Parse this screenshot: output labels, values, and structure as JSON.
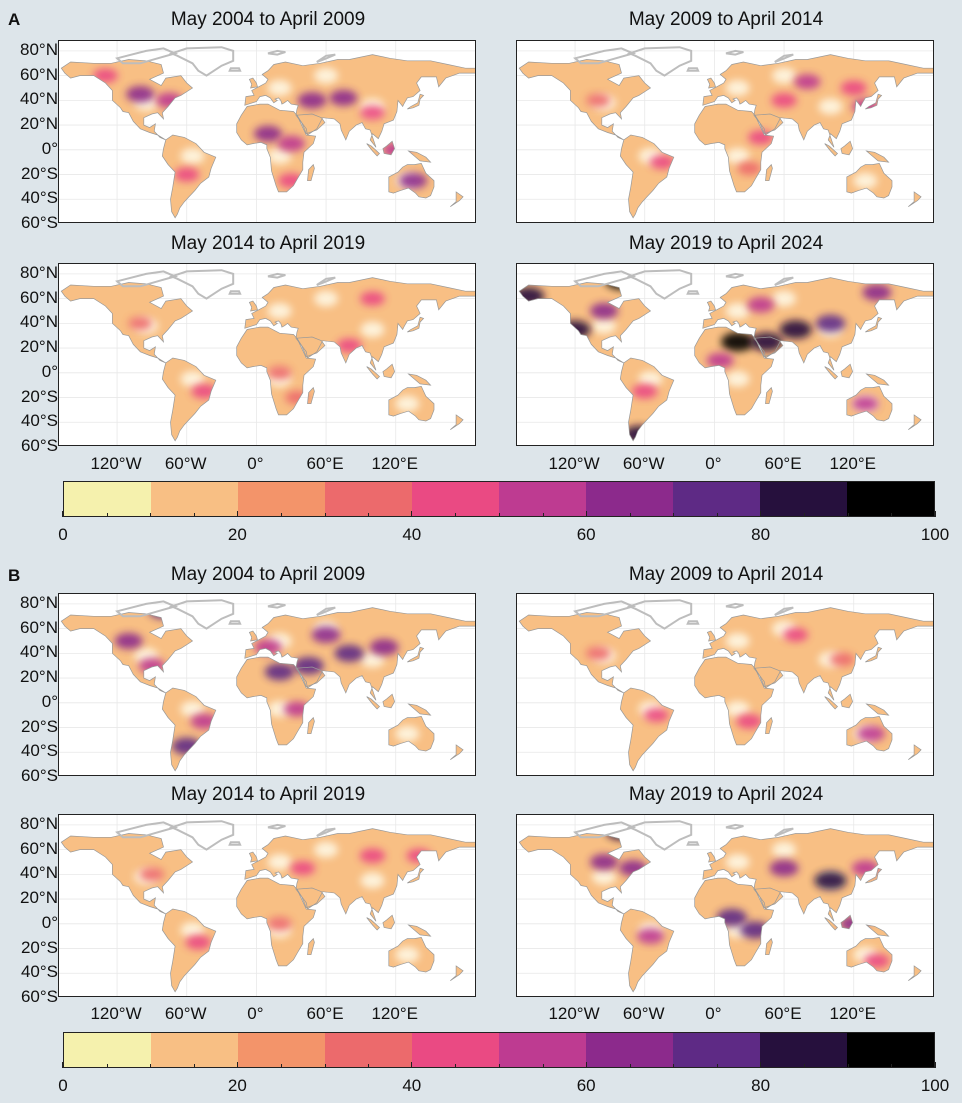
{
  "panels": [
    {
      "letter": "A",
      "maps": [
        {
          "title": "May 2004 to April 2009",
          "hotspots": [
            {
              "lon": -100,
              "lat": 45,
              "v": 62
            },
            {
              "lon": -75,
              "lat": 40,
              "v": 55
            },
            {
              "lon": 10,
              "lat": 13,
              "v": 60
            },
            {
              "lon": 30,
              "lat": 5,
              "v": 58
            },
            {
              "lon": 48,
              "lat": 40,
              "v": 65
            },
            {
              "lon": 75,
              "lat": 42,
              "v": 60
            },
            {
              "lon": 120,
              "lat": 0,
              "v": 55
            },
            {
              "lon": 135,
              "lat": -25,
              "v": 60
            },
            {
              "lon": -60,
              "lat": -20,
              "v": 42
            },
            {
              "lon": 30,
              "lat": -25,
              "v": 48
            },
            {
              "lon": 100,
              "lat": 30,
              "v": 40
            },
            {
              "lon": -130,
              "lat": 60,
              "v": 40
            }
          ]
        },
        {
          "title": "May 2009 to April 2014",
          "hotspots": [
            {
              "lon": 80,
              "lat": 55,
              "v": 50
            },
            {
              "lon": 120,
              "lat": 50,
              "v": 48
            },
            {
              "lon": 130,
              "lat": 35,
              "v": 55
            },
            {
              "lon": 40,
              "lat": 10,
              "v": 45
            },
            {
              "lon": -45,
              "lat": -10,
              "v": 40
            },
            {
              "lon": 30,
              "lat": -15,
              "v": 35
            },
            {
              "lon": 60,
              "lat": 40,
              "v": 45
            },
            {
              "lon": -100,
              "lat": 40,
              "v": 35
            }
          ]
        },
        {
          "title": "May 2014 to April 2019",
          "hotspots": [
            {
              "lon": 80,
              "lat": 22,
              "v": 42
            },
            {
              "lon": -45,
              "lat": -15,
              "v": 45
            },
            {
              "lon": 100,
              "lat": 60,
              "v": 40
            },
            {
              "lon": 20,
              "lat": 0,
              "v": 35
            },
            {
              "lon": -100,
              "lat": 40,
              "v": 32
            },
            {
              "lon": 35,
              "lat": -20,
              "v": 35
            }
          ]
        },
        {
          "title": "May 2019 to April 2024",
          "hotspots": [
            {
              "lon": 20,
              "lat": 25,
              "v": 90
            },
            {
              "lon": 45,
              "lat": 25,
              "v": 88
            },
            {
              "lon": 70,
              "lat": 35,
              "v": 85
            },
            {
              "lon": -120,
              "lat": 35,
              "v": 80
            },
            {
              "lon": -160,
              "lat": 62,
              "v": 80
            },
            {
              "lon": -80,
              "lat": 75,
              "v": 90
            },
            {
              "lon": 100,
              "lat": 40,
              "v": 70
            },
            {
              "lon": 140,
              "lat": 65,
              "v": 65
            },
            {
              "lon": -65,
              "lat": -50,
              "v": 80
            },
            {
              "lon": -60,
              "lat": -15,
              "v": 45
            },
            {
              "lon": 130,
              "lat": -25,
              "v": 50
            },
            {
              "lon": 40,
              "lat": 55,
              "v": 55
            },
            {
              "lon": -95,
              "lat": 50,
              "v": 60
            },
            {
              "lon": 5,
              "lat": 10,
              "v": 55
            }
          ]
        }
      ],
      "colorbar": {
        "ticks": [
          "0",
          "20",
          "40",
          "60",
          "80",
          "100"
        ]
      }
    },
    {
      "letter": "B",
      "maps": [
        {
          "title": "May 2004 to April 2009",
          "hotspots": [
            {
              "lon": 20,
              "lat": 25,
              "v": 70
            },
            {
              "lon": 45,
              "lat": 30,
              "v": 75
            },
            {
              "lon": 80,
              "lat": 40,
              "v": 70
            },
            {
              "lon": 60,
              "lat": 55,
              "v": 65
            },
            {
              "lon": 110,
              "lat": 45,
              "v": 65
            },
            {
              "lon": -80,
              "lat": 75,
              "v": 75
            },
            {
              "lon": -110,
              "lat": 50,
              "v": 60
            },
            {
              "lon": -60,
              "lat": -35,
              "v": 70
            },
            {
              "lon": -45,
              "lat": -15,
              "v": 55
            },
            {
              "lon": 10,
              "lat": 45,
              "v": 55
            },
            {
              "lon": -90,
              "lat": 30,
              "v": 50
            },
            {
              "lon": 35,
              "lat": -5,
              "v": 50
            }
          ]
        },
        {
          "title": "May 2009 to April 2014",
          "hotspots": [
            {
              "lon": 135,
              "lat": -25,
              "v": 58
            },
            {
              "lon": 30,
              "lat": -15,
              "v": 48
            },
            {
              "lon": -50,
              "lat": -10,
              "v": 40
            },
            {
              "lon": 70,
              "lat": 55,
              "v": 40
            },
            {
              "lon": -100,
              "lat": 40,
              "v": 38
            },
            {
              "lon": 110,
              "lat": 35,
              "v": 38
            }
          ]
        },
        {
          "title": "May 2014 to April 2019",
          "hotspots": [
            {
              "lon": -50,
              "lat": -15,
              "v": 45
            },
            {
              "lon": 100,
              "lat": 55,
              "v": 45
            },
            {
              "lon": 20,
              "lat": 0,
              "v": 38
            },
            {
              "lon": -90,
              "lat": 40,
              "v": 38
            },
            {
              "lon": 140,
              "lat": 55,
              "v": 42
            },
            {
              "lon": 40,
              "lat": 45,
              "v": 40
            }
          ]
        },
        {
          "title": "May 2019 to April 2024",
          "hotspots": [
            {
              "lon": 15,
              "lat": 5,
              "v": 75
            },
            {
              "lon": 35,
              "lat": -5,
              "v": 72
            },
            {
              "lon": 100,
              "lat": 35,
              "v": 85
            },
            {
              "lon": 60,
              "lat": 45,
              "v": 65
            },
            {
              "lon": -80,
              "lat": 75,
              "v": 80
            },
            {
              "lon": -95,
              "lat": 50,
              "v": 60
            },
            {
              "lon": -55,
              "lat": -10,
              "v": 55
            },
            {
              "lon": 130,
              "lat": 45,
              "v": 55
            },
            {
              "lon": -70,
              "lat": 45,
              "v": 60
            },
            {
              "lon": 120,
              "lat": 0,
              "v": 60
            },
            {
              "lon": 140,
              "lat": -30,
              "v": 45
            }
          ]
        }
      ],
      "colorbar": {
        "ticks": [
          "0",
          "20",
          "40",
          "60",
          "80",
          "100"
        ]
      }
    }
  ],
  "lat_ticks": [
    "80°N",
    "60°N",
    "40°N",
    "20°N",
    "0°",
    "20°S",
    "40°S",
    "60°S"
  ],
  "lat_values": [
    80,
    60,
    40,
    20,
    0,
    -20,
    -40,
    -60
  ],
  "lon_ticks": [
    "120°W",
    "60°W",
    "0°",
    "60°E",
    "120°E"
  ],
  "lon_values": [
    -120,
    -60,
    0,
    60,
    120
  ],
  "chart_data": {
    "type": "heatmap",
    "description_units": "percent",
    "colorbar_range": [
      0,
      100
    ],
    "colorbar_bins": [
      0,
      10,
      20,
      30,
      40,
      50,
      60,
      70,
      80,
      90,
      100
    ],
    "colorbar_colors": [
      "#f5f1ad",
      "#f8bf84",
      "#f3946a",
      "#ec6a6c",
      "#ea4a83",
      "#be3b91",
      "#8c2a8c",
      "#5e2a85",
      "#26103d",
      "#000000"
    ],
    "land_low_color": "#fefbe9",
    "ice_outline_color": "#bdbdbd",
    "xlim": [
      -170,
      190
    ],
    "ylim": [
      -60,
      88
    ]
  }
}
